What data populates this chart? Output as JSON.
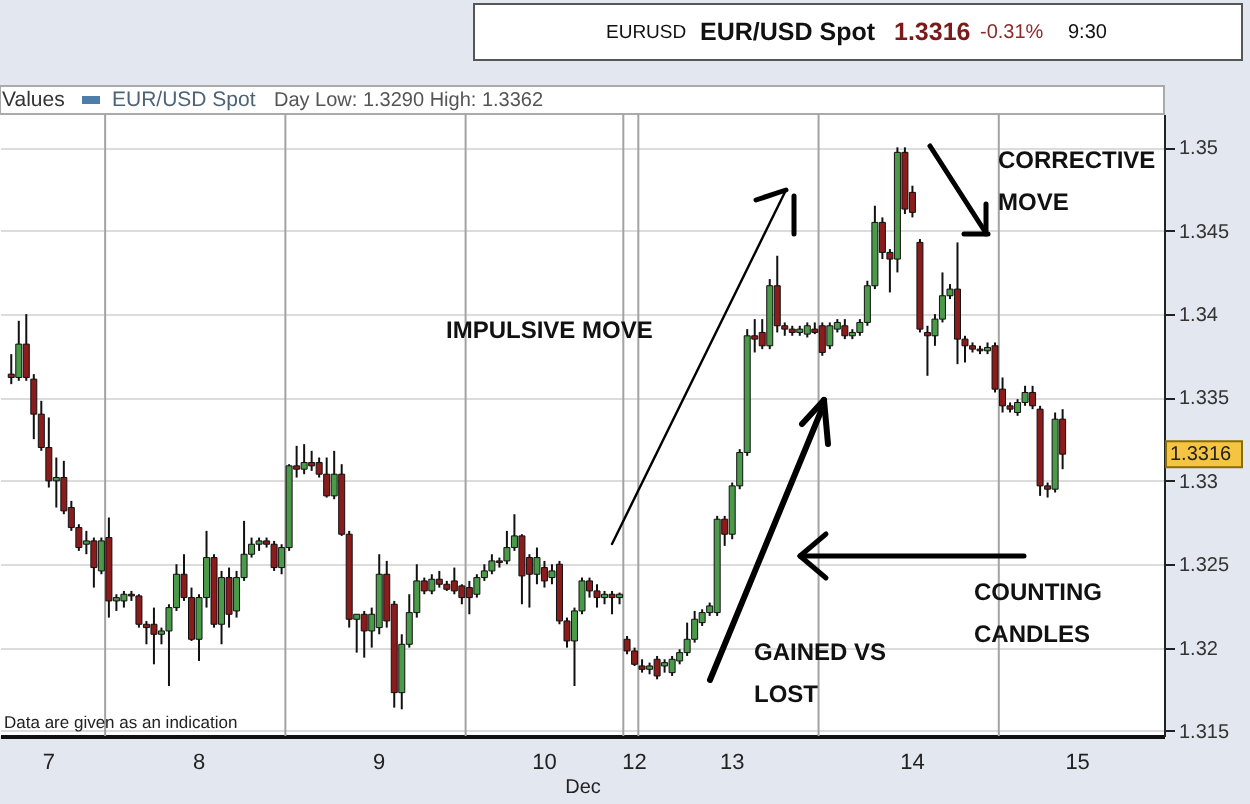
{
  "chart_data": {
    "type": "candlestick",
    "title": "EUR/USD Spot",
    "legend_title": "Values",
    "xlabel": "Dec",
    "legend": "top left",
    "grid": "y",
    "categories": [
      null,
      null,
      null,
      null,
      null,
      null,
      "7",
      null,
      null,
      null,
      null,
      null,
      null,
      null,
      null,
      null,
      null,
      null,
      null,
      null,
      null,
      null,
      null,
      null,
      null,
      null,
      "8",
      null,
      null,
      null,
      null,
      null,
      null,
      null,
      null,
      null,
      null,
      null,
      null,
      null,
      null,
      null,
      null,
      null,
      null,
      null,
      null,
      null,
      null,
      null,
      "9",
      null,
      null,
      null,
      null,
      null,
      null,
      null,
      null,
      null,
      null,
      null,
      null,
      null,
      null,
      null,
      null,
      null,
      null,
      null,
      null,
      null,
      "10",
      null,
      null,
      null,
      null,
      null,
      null,
      null,
      null,
      null,
      null,
      null,
      "12",
      null,
      null,
      null,
      null,
      null,
      null,
      null,
      null,
      null,
      null,
      null,
      null,
      "13",
      null,
      null,
      null,
      null,
      null,
      null,
      null,
      null,
      null,
      null,
      null,
      null,
      null,
      null,
      null,
      null,
      null,
      null,
      null,
      null,
      null,
      null,
      null,
      "14",
      null,
      null,
      null,
      null,
      null,
      null,
      null,
      null,
      null,
      null,
      null,
      null,
      null,
      null,
      null,
      null,
      null,
      null,
      null,
      null,
      null,
      "15",
      null,
      null,
      null,
      null,
      null,
      null,
      null,
      null,
      null,
      null,
      null
    ],
    "ylim": [
      1.3147,
      1.352
    ],
    "yticks": [
      1.315,
      1.32,
      1.325,
      1.33,
      1.335,
      1.34,
      1.345,
      1.35
    ],
    "annotations": [
      "EURUSD",
      "1.3316",
      "-0.31%",
      "9:30",
      "Day Low: 1.3290 High: 1.3362",
      "Data are given as an indication",
      "IMPULSIVE MOVE",
      "CORRECTIVE\nMOVE",
      "GAINED VS\nLOST",
      "COUNTING\nCANDLES",
      {
        "text": "1.3316",
        "y": 1.3316
      }
    ],
    "series": [
      {
        "name": "EUR/USD Spot",
        "color": "#4d7ea8",
        "ohlc": [
          null,
          [
            1.3364,
            1.3376,
            1.3358,
            1.3362
          ],
          [
            1.3362,
            1.3396,
            1.336,
            1.3382
          ],
          [
            1.3382,
            1.34,
            1.336,
            1.3362
          ],
          [
            1.3361,
            1.3364,
            1.3325,
            1.334
          ],
          [
            1.334,
            1.3348,
            1.3318,
            1.332
          ],
          [
            1.332,
            1.3338,
            1.3296,
            1.33
          ],
          [
            1.33,
            1.3314,
            1.3284,
            1.3302
          ],
          [
            1.3302,
            1.3312,
            1.328,
            1.3282
          ],
          [
            1.3284,
            1.3288,
            1.327,
            1.3272
          ],
          [
            1.3272,
            1.3274,
            1.3258,
            1.326
          ],
          [
            1.3262,
            1.327,
            1.3256,
            1.3264
          ],
          [
            1.3264,
            1.3266,
            1.3236,
            1.3248
          ],
          [
            1.3246,
            1.3266,
            1.3244,
            1.3264
          ],
          [
            1.3266,
            1.3278,
            1.3218,
            1.3228
          ],
          [
            1.3228,
            1.3232,
            1.3222,
            1.323
          ],
          [
            1.3228,
            1.3234,
            1.3224,
            1.3232
          ],
          [
            1.3232,
            1.3234,
            1.3228,
            1.3231
          ],
          [
            1.3231,
            1.3232,
            1.3212,
            1.3214
          ],
          [
            1.3214,
            1.3216,
            1.3202,
            1.3212
          ],
          [
            1.3214,
            1.3224,
            1.319,
            1.3208
          ],
          [
            1.3208,
            1.3212,
            1.3202,
            1.321
          ],
          [
            1.321,
            1.3226,
            1.3177,
            1.3224
          ],
          [
            1.3224,
            1.325,
            1.3222,
            1.3244
          ],
          [
            1.3244,
            1.3256,
            1.3228,
            1.323
          ],
          [
            1.323,
            1.3236,
            1.3204,
            1.3205
          ],
          [
            1.3205,
            1.3232,
            1.3192,
            1.323
          ],
          [
            1.323,
            1.327,
            1.3224,
            1.3254
          ],
          [
            1.3254,
            1.3256,
            1.3212,
            1.3214
          ],
          [
            1.3214,
            1.3246,
            1.3202,
            1.3242
          ],
          [
            1.3242,
            1.3248,
            1.3212,
            1.322
          ],
          [
            1.3222,
            1.3246,
            1.3218,
            1.3242
          ],
          [
            1.3242,
            1.3276,
            1.324,
            1.3256
          ],
          [
            1.3256,
            1.3266,
            1.3254,
            1.3262
          ],
          [
            1.3262,
            1.3266,
            1.3258,
            1.3264
          ],
          [
            1.3264,
            1.3266,
            1.326,
            1.3262
          ],
          [
            1.3262,
            1.3264,
            1.3246,
            1.3248
          ],
          [
            1.3248,
            1.3262,
            1.3244,
            1.326
          ],
          [
            1.326,
            1.331,
            1.3258,
            1.3309
          ],
          [
            1.3309,
            1.3321,
            1.3302,
            1.3307
          ],
          [
            1.3307,
            1.3322,
            1.3304,
            1.3311
          ],
          [
            1.3311,
            1.3318,
            1.3306,
            1.3309
          ],
          [
            1.3311,
            1.3314,
            1.3302,
            1.3304
          ],
          [
            1.3304,
            1.3314,
            1.329,
            1.3291
          ],
          [
            1.3291,
            1.3318,
            1.3289,
            1.3304
          ],
          [
            1.3304,
            1.331,
            1.3267,
            1.3268
          ],
          [
            1.3268,
            1.327,
            1.3212,
            1.3217
          ],
          [
            1.3217,
            1.322,
            1.3197,
            1.322
          ],
          [
            1.322,
            1.3222,
            1.3194,
            1.321
          ],
          [
            1.321,
            1.3224,
            1.32,
            1.322
          ],
          [
            1.3212,
            1.3256,
            1.3208,
            1.3244
          ],
          [
            1.3244,
            1.3252,
            1.3212,
            1.3216
          ],
          [
            1.3226,
            1.3228,
            1.3164,
            1.3173
          ],
          [
            1.3173,
            1.3208,
            1.3163,
            1.3202
          ],
          [
            1.3202,
            1.3232,
            1.32,
            1.3221
          ],
          [
            1.3221,
            1.325,
            1.3218,
            1.324
          ],
          [
            1.324,
            1.3242,
            1.3232,
            1.3234
          ],
          [
            1.3234,
            1.3244,
            1.3232,
            1.3241
          ],
          [
            1.3241,
            1.3246,
            1.3236,
            1.3238
          ],
          [
            1.3238,
            1.324,
            1.3234,
            1.3235
          ],
          [
            1.324,
            1.3248,
            1.3232,
            1.3234
          ],
          [
            1.3237,
            1.3238,
            1.3226,
            1.323
          ],
          [
            1.3236,
            1.324,
            1.322,
            1.323
          ],
          [
            1.3232,
            1.3244,
            1.323,
            1.3242
          ],
          [
            1.3242,
            1.325,
            1.324,
            1.3246
          ],
          [
            1.3246,
            1.3256,
            1.3244,
            1.3252
          ],
          [
            1.3252,
            1.3254,
            1.3248,
            1.3251
          ],
          [
            1.3252,
            1.327,
            1.325,
            1.326
          ],
          [
            1.326,
            1.328,
            1.3258,
            1.3267
          ],
          [
            1.3267,
            1.3268,
            1.3226,
            1.3243
          ],
          [
            1.3254,
            1.3256,
            1.3224,
            1.3244
          ],
          [
            1.3244,
            1.326,
            1.3238,
            1.3254
          ],
          [
            1.3248,
            1.3252,
            1.3236,
            1.324
          ],
          [
            1.3242,
            1.325,
            1.3238,
            1.3246
          ],
          [
            1.325,
            1.3252,
            1.3214,
            1.3216
          ],
          [
            1.3216,
            1.3218,
            1.32,
            1.3204
          ],
          [
            1.3204,
            1.3224,
            1.3177,
            1.3222
          ],
          [
            1.3222,
            1.3242,
            1.322,
            1.324
          ],
          [
            1.324,
            1.3242,
            1.323,
            1.3234
          ],
          [
            1.3234,
            1.3238,
            1.3224,
            1.323
          ],
          [
            1.323,
            1.3234,
            1.3226,
            1.3232
          ],
          [
            1.3232,
            1.3234,
            1.322,
            1.323
          ],
          [
            1.323,
            1.3233,
            1.3226,
            1.3232
          ],
          [
            1.3205,
            1.3207,
            1.3196,
            1.3198
          ],
          [
            1.3198,
            1.32,
            1.3189,
            1.319
          ],
          [
            1.3189,
            1.3193,
            1.3185,
            1.3187
          ],
          [
            1.3187,
            1.3191,
            1.3184,
            1.3189
          ],
          [
            1.3193,
            1.3195,
            1.3181,
            1.3183
          ],
          [
            1.3189,
            1.3193,
            1.3185,
            1.3191
          ],
          [
            1.3185,
            1.3195,
            1.3183,
            1.3193
          ],
          [
            1.3192,
            1.3199,
            1.319,
            1.3197
          ],
          [
            1.3197,
            1.3215,
            1.3195,
            1.3205
          ],
          [
            1.3205,
            1.3222,
            1.3203,
            1.3217
          ],
          [
            1.3215,
            1.3223,
            1.3213,
            1.3221
          ],
          [
            1.3221,
            1.3227,
            1.3219,
            1.3225
          ],
          [
            1.3221,
            1.3279,
            1.3219,
            1.3277
          ],
          [
            1.3277,
            1.3279,
            1.3261,
            1.3268
          ],
          [
            1.3268,
            1.3299,
            1.3265,
            1.3297
          ],
          [
            1.3297,
            1.3319,
            1.3295,
            1.3317
          ],
          [
            1.3317,
            1.3391,
            1.3315,
            1.3387
          ],
          [
            1.3387,
            1.3397,
            1.3377,
            1.3385
          ],
          [
            1.3389,
            1.3397,
            1.3379,
            1.3381
          ],
          [
            1.3381,
            1.3421,
            1.3379,
            1.3417
          ],
          [
            1.3417,
            1.3435,
            1.3389,
            1.3393
          ],
          [
            1.3393,
            1.3395,
            1.3387,
            1.3391
          ],
          [
            1.3391,
            1.3393,
            1.3387,
            1.3389
          ],
          [
            1.3389,
            1.3393,
            1.3387,
            1.3391
          ],
          [
            1.3388,
            1.3395,
            1.3386,
            1.3393
          ],
          [
            1.3391,
            1.3395,
            1.3388,
            1.3389
          ],
          [
            1.3393,
            1.3395,
            1.3375,
            1.3377
          ],
          [
            1.3381,
            1.3395,
            1.3379,
            1.3393
          ],
          [
            1.3391,
            1.3397,
            1.3389,
            1.3395
          ],
          [
            1.3393,
            1.3397,
            1.3385,
            1.3387
          ],
          [
            1.3387,
            1.3391,
            1.3385,
            1.3389
          ],
          [
            1.3389,
            1.3397,
            1.3387,
            1.3395
          ],
          [
            1.3395,
            1.342,
            1.3393,
            1.3417
          ],
          [
            1.3417,
            1.3465,
            1.3415,
            1.3455
          ],
          [
            1.3455,
            1.3458,
            1.3433,
            1.3437
          ],
          [
            1.3437,
            1.3439,
            1.3413,
            1.3433
          ],
          [
            1.3433,
            1.35,
            1.3425,
            1.3497
          ],
          [
            1.3497,
            1.35,
            1.346,
            1.3463
          ],
          [
            1.3473,
            1.3477,
            1.3458,
            1.3461
          ],
          [
            1.3443,
            1.3445,
            1.3389,
            1.3391
          ],
          [
            1.3389,
            1.3393,
            1.3363,
            1.3387
          ],
          [
            1.3387,
            1.34,
            1.3381,
            1.3397
          ],
          [
            1.3397,
            1.3425,
            1.3395,
            1.3411
          ],
          [
            1.3411,
            1.3418,
            1.3409,
            1.3415
          ],
          [
            1.3415,
            1.3443,
            1.337,
            1.3385
          ],
          [
            1.3385,
            1.3387,
            1.3371,
            1.3381
          ],
          [
            1.3381,
            1.3383,
            1.3377,
            1.3379
          ],
          [
            1.3379,
            1.3381,
            1.3376,
            1.3378
          ],
          [
            1.3378,
            1.3383,
            1.3376,
            1.338
          ],
          [
            1.3381,
            1.3383,
            1.3353,
            1.3355
          ],
          [
            1.3355,
            1.3362,
            1.3341,
            1.3345
          ],
          [
            1.3345,
            1.3347,
            1.3341,
            1.3343
          ],
          [
            1.3341,
            1.3349,
            1.3339,
            1.3347
          ],
          [
            1.3347,
            1.3357,
            1.3345,
            1.3353
          ],
          [
            1.3353,
            1.3357,
            1.3343,
            1.3345
          ],
          [
            1.3343,
            1.3345,
            1.3291,
            1.3297
          ],
          [
            1.3297,
            1.3299,
            1.329,
            1.3295
          ],
          [
            1.3295,
            1.3341,
            1.3293,
            1.3337
          ],
          [
            1.3337,
            1.3343,
            1.3307,
            1.3316
          ],
          null,
          null,
          null,
          null,
          null,
          null,
          null,
          null,
          null,
          null,
          null,
          null,
          null
        ],
        "colors": [
          null,
          "#8b1c1c",
          "#4a9a4a",
          "#8b1c1c",
          "#8b1c1c",
          "#8b1c1c",
          "#8b1c1c",
          "#4a9a4a",
          "#8b1c1c",
          "#8b1c1c",
          "#8b1c1c",
          "#4a9a4a",
          "#8b1c1c",
          "#4a9a4a",
          "#8b1c1c",
          "#4a9a4a",
          "#4a9a4a",
          "#8b1c1c",
          "#8b1c1c",
          "#8b1c1c",
          "#8b1c1c",
          "#4a9a4a",
          "#4a9a4a",
          "#4a9a4a",
          "#8b1c1c",
          "#8b1c1c",
          "#4a9a4a",
          "#4a9a4a",
          "#8b1c1c",
          "#4a9a4a",
          "#8b1c1c",
          "#4a9a4a",
          "#4a9a4a",
          "#4a9a4a",
          "#4a9a4a",
          "#8b1c1c",
          "#8b1c1c",
          "#4a9a4a",
          "#4a9a4a",
          "#8b1c1c",
          "#4a9a4a",
          "#8b1c1c",
          "#8b1c1c",
          "#8b1c1c",
          "#4a9a4a",
          "#8b1c1c",
          "#8b1c1c",
          "#4a9a4a",
          "#8b1c1c",
          "#4a9a4a",
          "#4a9a4a",
          "#8b1c1c",
          "#8b1c1c",
          "#4a9a4a",
          "#4a9a4a",
          "#4a9a4a",
          "#8b1c1c",
          "#4a9a4a",
          "#8b1c1c",
          "#8b1c1c",
          "#8b1c1c",
          "#8b1c1c",
          "#8b1c1c",
          "#4a9a4a",
          "#4a9a4a",
          "#4a9a4a",
          "#8b1c1c",
          "#4a9a4a",
          "#4a9a4a",
          "#8b1c1c",
          "#8b1c1c",
          "#4a9a4a",
          "#8b1c1c",
          "#4a9a4a",
          "#8b1c1c",
          "#8b1c1c",
          "#4a9a4a",
          "#4a9a4a",
          "#8b1c1c",
          "#8b1c1c",
          "#4a9a4a",
          "#8b1c1c",
          "#4a9a4a",
          "#8b1c1c",
          "#8b1c1c",
          "#8b1c1c",
          "#4a9a4a",
          "#8b1c1c",
          "#4a9a4a",
          "#4a9a4a",
          "#4a9a4a",
          "#4a9a4a",
          "#4a9a4a",
          "#4a9a4a",
          "#4a9a4a",
          "#4a9a4a",
          "#8b1c1c",
          "#4a9a4a",
          "#4a9a4a",
          "#4a9a4a",
          "#8b1c1c",
          "#8b1c1c",
          "#4a9a4a",
          "#8b1c1c",
          "#8b1c1c",
          "#8b1c1c",
          "#4a9a4a",
          "#4a9a4a",
          "#8b1c1c",
          "#8b1c1c",
          "#4a9a4a",
          "#4a9a4a",
          "#8b1c1c",
          "#4a9a4a",
          "#4a9a4a",
          "#4a9a4a",
          "#4a9a4a",
          "#8b1c1c",
          "#8b1c1c",
          "#4a9a4a",
          "#8b1c1c",
          "#8b1c1c",
          "#8b1c1c",
          "#8b1c1c",
          "#4a9a4a",
          "#4a9a4a",
          "#4a9a4a",
          "#8b1c1c",
          "#8b1c1c",
          "#8b1c1c",
          "#8b1c1c",
          "#4a9a4a",
          "#8b1c1c",
          "#8b1c1c",
          "#8b1c1c",
          "#4a9a4a",
          "#4a9a4a",
          "#8b1c1c",
          "#8b1c1c",
          "#8b1c1c",
          "#4a9a4a",
          "#8b1c1c",
          null,
          null,
          null,
          null,
          null,
          null,
          null,
          null,
          null,
          null,
          null,
          null,
          null
        ]
      }
    ]
  }
}
